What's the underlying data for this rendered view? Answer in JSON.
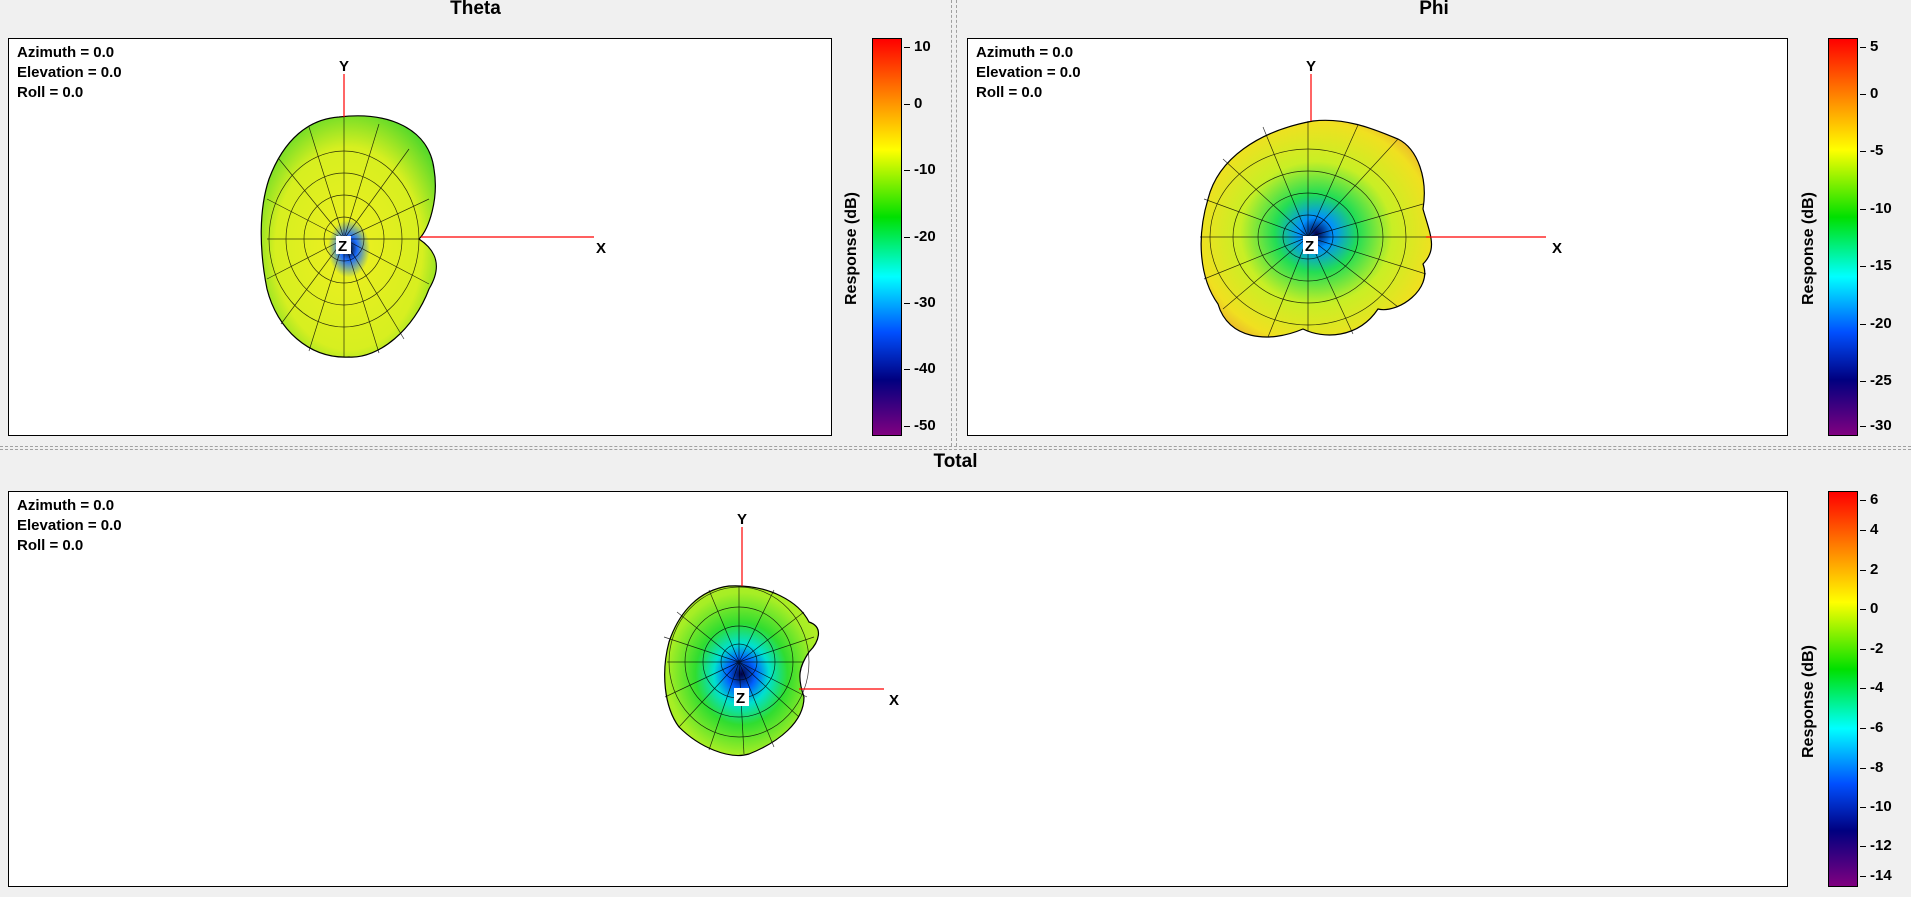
{
  "panels": {
    "theta": {
      "title": "Theta",
      "orientation": {
        "azimuth": "Azimuth = 0.0",
        "elevation": "Elevation = 0.0",
        "roll": "Roll = 0.0"
      },
      "axes": {
        "x": "X",
        "y": "Y",
        "z": "Z"
      },
      "colorbar": {
        "label": "Response  (dB)",
        "ticks": [
          "10",
          "0",
          "-10",
          "-20",
          "-30",
          "-40",
          "-50"
        ]
      }
    },
    "phi": {
      "title": "Phi",
      "orientation": {
        "azimuth": "Azimuth = 0.0",
        "elevation": "Elevation = 0.0",
        "roll": "Roll = 0.0"
      },
      "axes": {
        "x": "X",
        "y": "Y",
        "z": "Z"
      },
      "colorbar": {
        "label": "Response  (dB)",
        "ticks": [
          "5",
          "0",
          "-5",
          "-10",
          "-15",
          "-20",
          "-25",
          "-30"
        ]
      }
    },
    "total": {
      "title": "Total",
      "orientation": {
        "azimuth": "Azimuth = 0.0",
        "elevation": "Elevation = 0.0",
        "roll": "Roll = 0.0"
      },
      "axes": {
        "x": "X",
        "y": "Y",
        "z": "Z"
      },
      "colorbar": {
        "label": "Response  (dB)",
        "ticks": [
          "6",
          "4",
          "2",
          "0",
          "-2",
          "-4",
          "-6",
          "-8",
          "-10",
          "-12",
          "-14"
        ]
      }
    }
  },
  "colors": {
    "axis_line": "#ff0000",
    "mesh_line": "#000000",
    "theta_body": "#c8ef28",
    "phi_body": "#d6ef2a",
    "total_body": "#8ee82a"
  }
}
